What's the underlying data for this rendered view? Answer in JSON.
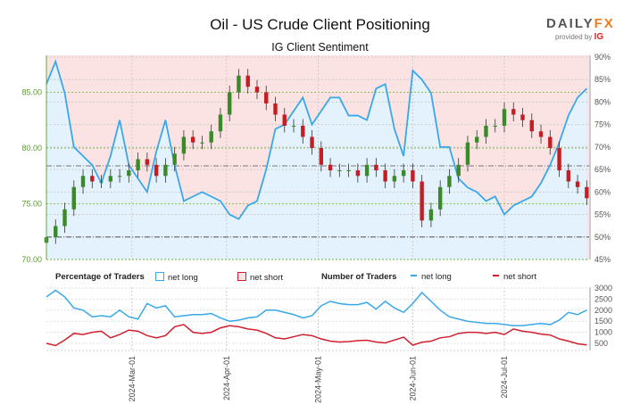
{
  "header": {
    "title": "Oil - US Crude Client Positioning",
    "subtitle": "IG Client Sentiment",
    "logo_main": "DAILY",
    "logo_accent": "FX",
    "logo_provided": "provided by",
    "logo_ig": "IG"
  },
  "legend": {
    "pct_title": "Percentage of Traders",
    "pct_long": "net long",
    "pct_short": "net short",
    "num_title": "Number of Traders",
    "num_long": "net long",
    "num_short": "net short"
  },
  "colors": {
    "long": "#3aa8e8",
    "short": "#d0202e",
    "long_fill": "#e3f2fc",
    "short_fill": "#fbe3e3",
    "bull": "#3a8a2a",
    "bear": "#c41e24",
    "price_axis": "#5a9a2a"
  },
  "chart_data": [
    {
      "type": "candlestick+area",
      "title": "IG Client Sentiment",
      "price_ticks": [
        "70.00",
        "75.00",
        "80.00",
        "85.00"
      ],
      "price_range": [
        70,
        88
      ],
      "pct_ticks": [
        "45%",
        "50%",
        "55%",
        "60%",
        "65%",
        "70%",
        "75%",
        "80%",
        "85%",
        "90%"
      ],
      "pct_range": [
        45,
        90
      ],
      "reference_levels": {
        "pct": 50,
        "price": 78.4
      },
      "dates": [
        "2024-02-02",
        "2024-02-05",
        "2024-02-08",
        "2024-02-11",
        "2024-02-14",
        "2024-02-17",
        "2024-02-20",
        "2024-02-23",
        "2024-02-26",
        "2024-02-29",
        "2024-03-03",
        "2024-03-06",
        "2024-03-09",
        "2024-03-12",
        "2024-03-15",
        "2024-03-18",
        "2024-03-21",
        "2024-03-24",
        "2024-03-27",
        "2024-03-30",
        "2024-04-02",
        "2024-04-05",
        "2024-04-08",
        "2024-04-11",
        "2024-04-14",
        "2024-04-17",
        "2024-04-20",
        "2024-04-23",
        "2024-04-26",
        "2024-04-29",
        "2024-05-02",
        "2024-05-05",
        "2024-05-08",
        "2024-05-11",
        "2024-05-14",
        "2024-05-17",
        "2024-05-20",
        "2024-05-23",
        "2024-05-26",
        "2024-05-29",
        "2024-06-01",
        "2024-06-04",
        "2024-06-07",
        "2024-06-10",
        "2024-06-13",
        "2024-06-16",
        "2024-06-19",
        "2024-06-22",
        "2024-06-25",
        "2024-06-28",
        "2024-07-01",
        "2024-07-04",
        "2024-07-07",
        "2024-07-10",
        "2024-07-13",
        "2024-07-16",
        "2024-07-19",
        "2024-07-22",
        "2024-07-25",
        "2024-07-28"
      ],
      "price_close": [
        72,
        73,
        74.5,
        76.5,
        77.5,
        77,
        77,
        77.5,
        77.5,
        78,
        79,
        78.5,
        77.5,
        78.5,
        79.5,
        81,
        80.5,
        80.5,
        81.5,
        83,
        85,
        86.5,
        85.5,
        85,
        84,
        83,
        82,
        82,
        81,
        80,
        78.5,
        78,
        78,
        78,
        77.5,
        78.5,
        78,
        77,
        77.5,
        78,
        77,
        73.5,
        74.5,
        76.5,
        77.5,
        78.5,
        80.5,
        81,
        82,
        82,
        83.5,
        83,
        82.5,
        81.5,
        81,
        80,
        78,
        77,
        76.5,
        75.5
      ],
      "pct_long": [
        84,
        89,
        82,
        70,
        68,
        66,
        62,
        68,
        76,
        66,
        63,
        60,
        69,
        76,
        66,
        58,
        59,
        60,
        59,
        58,
        55,
        54,
        57,
        58,
        65,
        74,
        75,
        78,
        81,
        75,
        78,
        81,
        81,
        77,
        77,
        76,
        83,
        84,
        74,
        68,
        87,
        85,
        82,
        70,
        70,
        63,
        61,
        60,
        58,
        59,
        55,
        57,
        58,
        59,
        62,
        66,
        71,
        77,
        81,
        83
      ]
    },
    {
      "type": "line",
      "title": "Number of Traders",
      "y_ticks": [
        "500",
        "1000",
        "1500",
        "2000",
        "2500",
        "3000"
      ],
      "y_range": [
        200,
        3000
      ],
      "x_ticks": [
        "2024-Mar-01",
        "2024-Apr-01",
        "2024-May-01",
        "2024-Jun-01",
        "2024-Jul-01"
      ],
      "series": [
        {
          "name": "net long",
          "values": [
            2600,
            2900,
            2600,
            2100,
            2000,
            1700,
            1750,
            1700,
            2000,
            1700,
            1600,
            2300,
            2100,
            2200,
            1700,
            1750,
            1800,
            1800,
            1850,
            1650,
            1500,
            1550,
            1650,
            1700,
            2000,
            2000,
            1900,
            1800,
            1650,
            1750,
            2200,
            2400,
            2300,
            2250,
            2250,
            2350,
            2050,
            2400,
            2100,
            1900,
            2300,
            2800,
            2400,
            2000,
            1700,
            1600,
            1500,
            1450,
            1400,
            1400,
            1350,
            1300,
            1300,
            1350,
            1400,
            1350,
            1550,
            1900,
            1800,
            2000
          ]
        },
        {
          "name": "net short",
          "values": [
            500,
            400,
            650,
            950,
            900,
            1000,
            1050,
            750,
            900,
            1100,
            1050,
            850,
            750,
            850,
            1250,
            1350,
            1000,
            950,
            1000,
            1200,
            1300,
            1250,
            1150,
            1100,
            950,
            750,
            700,
            800,
            900,
            850,
            700,
            600,
            560,
            580,
            620,
            640,
            560,
            520,
            650,
            780,
            420,
            550,
            600,
            750,
            800,
            950,
            1000,
            1000,
            950,
            1000,
            900,
            1150,
            1050,
            1000,
            920,
            880,
            700,
            600,
            480,
            430
          ]
        }
      ]
    }
  ]
}
